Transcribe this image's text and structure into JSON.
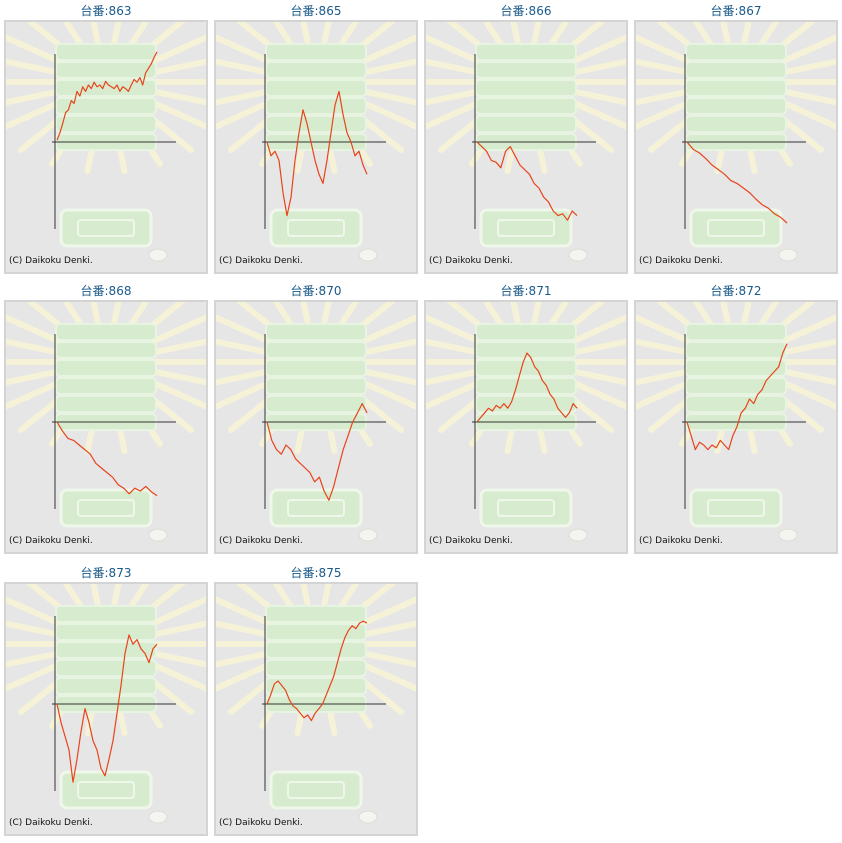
{
  "copyright": "(C) Daikoku Denki.",
  "colors": {
    "line": "#e8441a",
    "axis": "#333333",
    "title": "#1a5a8a"
  },
  "machines": [
    {
      "label": "台番:863",
      "chart_data": {
        "type": "line",
        "values": [
          0.02,
          0.1,
          0.2,
          0.32,
          0.35,
          0.45,
          0.42,
          0.55,
          0.5,
          0.6,
          0.55,
          0.62,
          0.58,
          0.65,
          0.6,
          0.62,
          0.58,
          0.66,
          0.62,
          0.6,
          0.58,
          0.62,
          0.55,
          0.6,
          0.58,
          0.55,
          0.62,
          0.68,
          0.65,
          0.7,
          0.62,
          0.75,
          0.8,
          0.85,
          0.92,
          0.98
        ]
      }
    },
    {
      "label": "台番:865",
      "chart_data": {
        "type": "line",
        "values": [
          0.0,
          -0.15,
          -0.1,
          -0.2,
          -0.55,
          -0.8,
          -0.6,
          -0.2,
          0.1,
          0.35,
          0.2,
          0.0,
          -0.2,
          -0.35,
          -0.45,
          -0.2,
          0.1,
          0.4,
          0.55,
          0.3,
          0.1,
          0.0,
          -0.15,
          -0.1,
          -0.25,
          -0.35
        ]
      }
    },
    {
      "label": "台番:866",
      "chart_data": {
        "type": "line",
        "values": [
          0.0,
          -0.05,
          -0.1,
          -0.2,
          -0.22,
          -0.28,
          -0.1,
          -0.05,
          -0.15,
          -0.25,
          -0.3,
          -0.35,
          -0.45,
          -0.5,
          -0.6,
          -0.65,
          -0.75,
          -0.8,
          -0.78,
          -0.85,
          -0.75,
          -0.8
        ]
      }
    },
    {
      "label": "台番:867",
      "chart_data": {
        "type": "line",
        "values": [
          0.0,
          -0.08,
          -0.12,
          -0.18,
          -0.25,
          -0.3,
          -0.35,
          -0.42,
          -0.45,
          -0.5,
          -0.55,
          -0.62,
          -0.68,
          -0.72,
          -0.78,
          -0.82,
          -0.88
        ]
      }
    },
    {
      "label": "台番:868",
      "chart_data": {
        "type": "line",
        "values": [
          0.0,
          -0.1,
          -0.18,
          -0.2,
          -0.25,
          -0.3,
          -0.35,
          -0.45,
          -0.5,
          -0.55,
          -0.6,
          -0.68,
          -0.72,
          -0.78,
          -0.72,
          -0.75,
          -0.7,
          -0.76,
          -0.8
        ]
      }
    },
    {
      "label": "台番:870",
      "chart_data": {
        "type": "line",
        "values": [
          0.0,
          -0.2,
          -0.3,
          -0.35,
          -0.25,
          -0.3,
          -0.4,
          -0.45,
          -0.5,
          -0.55,
          -0.65,
          -0.6,
          -0.75,
          -0.85,
          -0.7,
          -0.5,
          -0.3,
          -0.15,
          0.0,
          0.1,
          0.2,
          0.1
        ]
      }
    },
    {
      "label": "台番:871",
      "chart_data": {
        "type": "line",
        "values": [
          0.0,
          0.05,
          0.1,
          0.15,
          0.12,
          0.18,
          0.15,
          0.2,
          0.15,
          0.22,
          0.35,
          0.5,
          0.65,
          0.75,
          0.7,
          0.6,
          0.55,
          0.45,
          0.4,
          0.3,
          0.25,
          0.15,
          0.1,
          0.05,
          0.1,
          0.2,
          0.15
        ]
      }
    },
    {
      "label": "台番:872",
      "chart_data": {
        "type": "line",
        "values": [
          0.0,
          -0.15,
          -0.3,
          -0.22,
          -0.25,
          -0.3,
          -0.25,
          -0.28,
          -0.2,
          -0.25,
          -0.3,
          -0.15,
          -0.05,
          0.1,
          0.15,
          0.25,
          0.2,
          0.3,
          0.35,
          0.45,
          0.5,
          0.55,
          0.6,
          0.75,
          0.85
        ]
      }
    },
    {
      "label": "台番:873",
      "chart_data": {
        "type": "line",
        "values": [
          0.0,
          -0.2,
          -0.35,
          -0.5,
          -0.85,
          -0.6,
          -0.3,
          -0.05,
          -0.2,
          -0.4,
          -0.5,
          -0.7,
          -0.78,
          -0.6,
          -0.4,
          -0.1,
          0.2,
          0.55,
          0.75,
          0.65,
          0.7,
          0.6,
          0.55,
          0.45,
          0.6,
          0.65
        ]
      }
    },
    {
      "label": "台番:875",
      "chart_data": {
        "type": "line",
        "values": [
          0.0,
          0.1,
          0.22,
          0.25,
          0.2,
          0.15,
          0.05,
          -0.02,
          -0.05,
          -0.1,
          -0.15,
          -0.12,
          -0.18,
          -0.1,
          -0.05,
          0.0,
          0.1,
          0.2,
          0.3,
          0.45,
          0.6,
          0.72,
          0.8,
          0.85,
          0.82,
          0.88,
          0.9,
          0.88
        ]
      }
    }
  ]
}
